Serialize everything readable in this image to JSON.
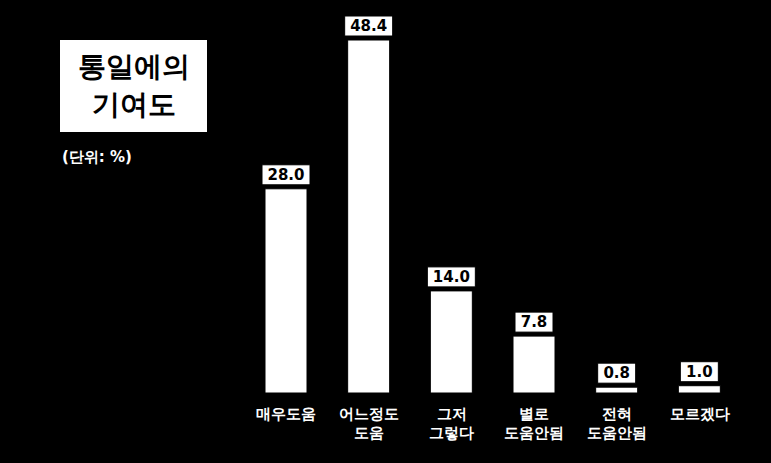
{
  "chart_data": {
    "type": "bar",
    "title": "통일에의 기여도",
    "subtitle": "(단위: %)",
    "categories": [
      "매우도움",
      "어느정도 도움",
      "그저 그렇다",
      "별로 도움안됨",
      "전혀 도움안됨",
      "모르겠다"
    ],
    "values": [
      28.0,
      48.4,
      14.0,
      7.8,
      0.8,
      1.0
    ],
    "value_labels": [
      "28.0",
      "48.4",
      "14.0",
      "7.8",
      "0.8",
      "1.0"
    ],
    "color": "#ffffff",
    "data_labels": true,
    "tick_labels": "x",
    "grid": false
  }
}
